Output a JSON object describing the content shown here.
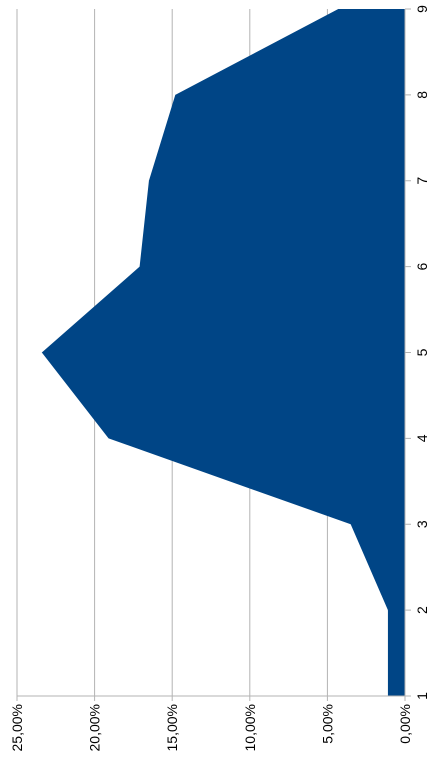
{
  "chart_data": {
    "type": "area",
    "orientation": "rotated-90-clockwise",
    "categories": [
      "1",
      "2",
      "3",
      "4",
      "5",
      "6",
      "7",
      "8",
      "9"
    ],
    "series": [
      {
        "values": [
          0.011,
          0.011,
          0.035,
          0.191,
          0.234,
          0.171,
          0.165,
          0.148,
          0.043
        ]
      }
    ],
    "value_axis": {
      "min": 0,
      "max": 0.25,
      "step": 0.05,
      "tick_labels": [
        "0,00%",
        "5,00%",
        "10,00%",
        "15,00%",
        "20,00%",
        "25,00%"
      ]
    },
    "grid": true,
    "legend": "none",
    "colors": {
      "fill": "#004586",
      "grid": "#b3b3b3",
      "axis": "#b3b3b3",
      "text": "#000000"
    },
    "title": "",
    "xlabel": "",
    "ylabel": ""
  }
}
